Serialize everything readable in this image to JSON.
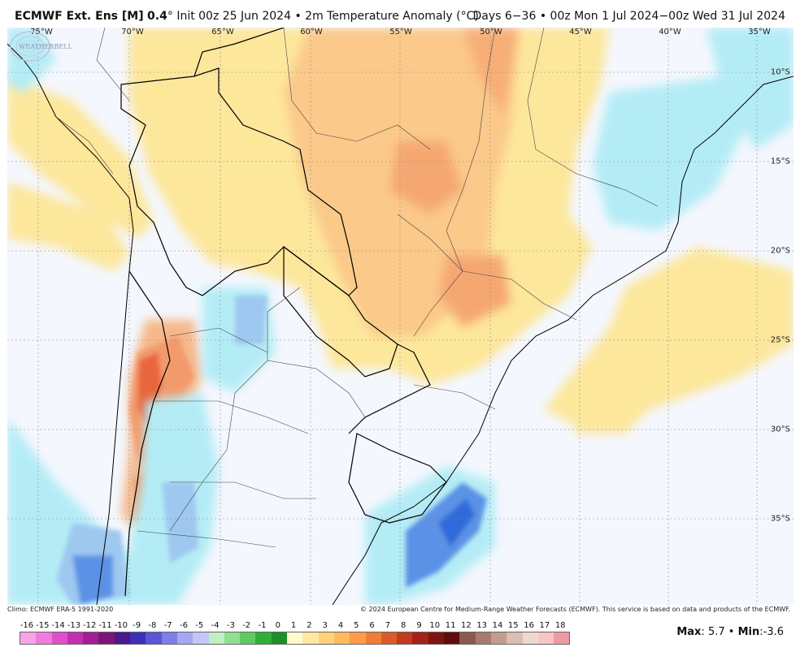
{
  "header": {
    "model": "ECMWF Ext. Ens [M]",
    "resolution": "0.4",
    "degree": "°",
    "init": "Init 00z 25 Jun 2024",
    "sep": "•",
    "variable": "2m Temperature Anomaly (°C)",
    "days": "Days 6−36",
    "period": "00z Mon 1 Jul 2024−00z Wed 31 Jul 2024"
  },
  "map": {
    "lon_labels": [
      "75°W",
      "70°W",
      "65°W",
      "60°W",
      "55°W",
      "50°W",
      "45°W",
      "40°W",
      "35°W"
    ],
    "lat_labels": [
      "10°S",
      "15°S",
      "20°S",
      "25°S",
      "30°S",
      "35°S"
    ],
    "logo_text": "WEATHERBELL"
  },
  "footer": {
    "climo": "Climo: ECMWF ERA-5 1991-2020",
    "copyright": "© 2024 European Centre for Medium-Range Weather Forecasts (ECMWF). This service is based on data and products of the ECMWF."
  },
  "colorbar": {
    "ticks": [
      "-16",
      "-15",
      "-14",
      "-13",
      "-12",
      "-11",
      "-10",
      "-9",
      "-8",
      "-7",
      "-6",
      "-5",
      "-4",
      "-3",
      "-2",
      "-1",
      "0",
      "1",
      "2",
      "3",
      "4",
      "5",
      "6",
      "7",
      "8",
      "9",
      "10",
      "11",
      "12",
      "13",
      "14",
      "15",
      "16",
      "17",
      "18"
    ],
    "colors": [
      "#f7a3e8",
      "#ef7bdc",
      "#e04fcc",
      "#c42fb0",
      "#a11f93",
      "#7d1578",
      "#4a1a8c",
      "#3c2fb8",
      "#5b54d8",
      "#7f7fe6",
      "#a5a7f0",
      "#c3c6f6",
      "#bff0c0",
      "#8fe08f",
      "#5fcb5f",
      "#2fae3a",
      "#1d8f2a",
      "#fffad0",
      "#ffe9a0",
      "#ffd27a",
      "#ffbb5c",
      "#ff9c45",
      "#f07d35",
      "#db5a28",
      "#c43a1f",
      "#a32318",
      "#7f1512",
      "#5e0d0c",
      "#8a5a4e",
      "#a77a6d",
      "#c39c90",
      "#dcbdb2",
      "#efd8d0",
      "#f7c4c8",
      "#ef9aa3"
    ]
  },
  "stats": {
    "max_label": "Max",
    "max_value": "5.7",
    "min_label": "Min",
    "min_value": "-3.6"
  },
  "colors": {
    "warm_light": "#fde79b",
    "warm_mid": "#fbc98a",
    "warm_strong": "#f39a6c",
    "warm_peak": "#e8663e",
    "cool_light": "#b4ecf6",
    "cool_mid": "#9fc8f0",
    "cool_strong": "#5b92e6",
    "cool_peak": "#2e6ad9",
    "neutral": "#f4f7fd"
  }
}
